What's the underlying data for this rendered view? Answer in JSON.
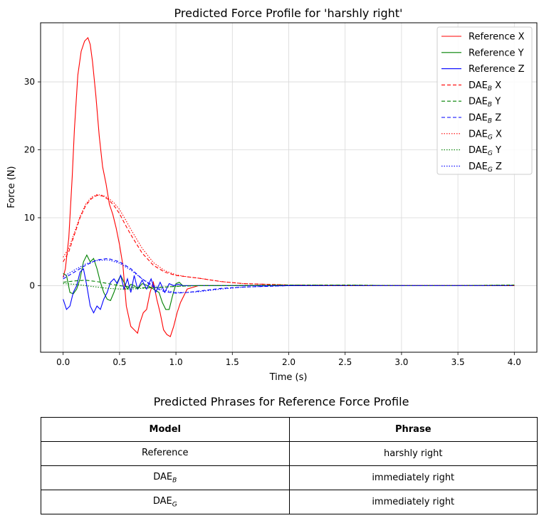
{
  "chart_data": {
    "type": "line",
    "title": "Predicted Force Profile for 'harshly right'",
    "xlabel": "Time (s)",
    "ylabel": "Force (N)",
    "xlim": [
      -0.2,
      4.2
    ],
    "ylim": [
      -9.8,
      38.7
    ],
    "xticks": [
      "0.0",
      "0.5",
      "1.0",
      "1.5",
      "2.0",
      "2.5",
      "3.0",
      "3.5",
      "4.0"
    ],
    "yticks": [
      "0",
      "10",
      "20",
      "30"
    ],
    "grid": true,
    "legend_position": "top-right",
    "series": [
      {
        "name": "Reference X",
        "subscript": "",
        "color": "#ff0000",
        "dash": "solid",
        "x": [
          0,
          0.02,
          0.05,
          0.08,
          0.1,
          0.13,
          0.16,
          0.19,
          0.22,
          0.24,
          0.26,
          0.29,
          0.32,
          0.35,
          0.38,
          0.41,
          0.44,
          0.47,
          0.5,
          0.53,
          0.56,
          0.6,
          0.63,
          0.66,
          0.68,
          0.71,
          0.74,
          0.77,
          0.8,
          0.83,
          0.86,
          0.89,
          0.92,
          0.95,
          0.98,
          1.01,
          1.04,
          1.1,
          1.2,
          1.5,
          2,
          2.5,
          3,
          3.5,
          4
        ],
        "y": [
          1.2,
          2.5,
          7,
          16,
          23,
          31,
          34.5,
          36,
          36.5,
          35.5,
          33,
          28,
          22,
          17.5,
          15,
          12,
          10.5,
          8.5,
          6,
          3,
          -3,
          -6,
          -6.5,
          -7,
          -5.5,
          -4,
          -3.5,
          -1,
          0.5,
          -2,
          -4,
          -6.5,
          -7.2,
          -7.5,
          -6,
          -4,
          -2.5,
          -0.5,
          0,
          0,
          0,
          0,
          0,
          0,
          0
        ]
      },
      {
        "name": "Reference Y",
        "subscript": "",
        "color": "#008000",
        "dash": "solid",
        "x": [
          0,
          0.03,
          0.06,
          0.09,
          0.12,
          0.15,
          0.18,
          0.21,
          0.24,
          0.27,
          0.3,
          0.33,
          0.36,
          0.39,
          0.42,
          0.45,
          0.48,
          0.51,
          0.54,
          0.57,
          0.6,
          0.63,
          0.66,
          0.7,
          0.75,
          0.8,
          0.85,
          0.88,
          0.91,
          0.94,
          0.97,
          1,
          1.03,
          1.06,
          1.2,
          1.5,
          2,
          2.5,
          3,
          3.5,
          4
        ],
        "y": [
          1.8,
          1.5,
          -1,
          -1.2,
          -0.5,
          1,
          3.5,
          4.5,
          3.5,
          4,
          2.5,
          0.5,
          -1,
          -2,
          -2.2,
          -1,
          0.5,
          1.5,
          0.5,
          -0.5,
          0.2,
          0,
          -0.5,
          0.3,
          0,
          -0.5,
          -1,
          -2.5,
          -3.5,
          -3.5,
          -1.5,
          0.3,
          0.5,
          0,
          0,
          0,
          0,
          0,
          0,
          0,
          0
        ]
      },
      {
        "name": "Reference Z",
        "subscript": "",
        "color": "#0000ff",
        "dash": "solid",
        "x": [
          0,
          0.03,
          0.06,
          0.09,
          0.12,
          0.15,
          0.18,
          0.21,
          0.24,
          0.27,
          0.3,
          0.33,
          0.36,
          0.39,
          0.42,
          0.45,
          0.48,
          0.51,
          0.54,
          0.57,
          0.6,
          0.63,
          0.66,
          0.7,
          0.74,
          0.78,
          0.82,
          0.86,
          0.9,
          0.94,
          0.98,
          1.02,
          1.06,
          1.2,
          1.5,
          2,
          2.5,
          3,
          3.5,
          4
        ],
        "y": [
          -2,
          -3.5,
          -3,
          -1,
          0,
          2,
          2.5,
          0,
          -3,
          -4,
          -3,
          -3.5,
          -2,
          -1,
          0.5,
          1,
          0.3,
          1.5,
          -0.5,
          1,
          -1,
          1.5,
          -0.5,
          0.8,
          -0.5,
          1,
          -1,
          0.5,
          -1,
          0.3,
          0,
          0.2,
          0,
          0,
          0,
          0,
          0,
          0,
          0,
          0
        ]
      },
      {
        "name": "DAE",
        "subscript": "B",
        "suffix": " X",
        "color": "#ff0000",
        "dash": "5,3",
        "x": [
          0,
          0.05,
          0.1,
          0.15,
          0.2,
          0.25,
          0.3,
          0.35,
          0.4,
          0.45,
          0.5,
          0.55,
          0.6,
          0.7,
          0.8,
          0.9,
          1,
          1.1,
          1.2,
          1.4,
          1.6,
          1.8,
          2,
          2.5,
          3,
          3.5,
          4
        ],
        "y": [
          3.5,
          5,
          7.5,
          10,
          11.8,
          12.8,
          13.3,
          13.2,
          12.7,
          11.8,
          10.6,
          9,
          7.5,
          4.8,
          3,
          2,
          1.5,
          1.3,
          1.1,
          0.6,
          0.3,
          0.2,
          0.1,
          0,
          0,
          0,
          0
        ]
      },
      {
        "name": "DAE",
        "subscript": "B",
        "suffix": " Y",
        "color": "#008000",
        "dash": "5,3",
        "x": [
          0,
          0.1,
          0.2,
          0.3,
          0.4,
          0.5,
          0.6,
          0.7,
          0.8,
          0.9,
          1,
          1.2,
          1.5,
          2,
          2.5,
          3,
          3.5,
          4
        ],
        "y": [
          0.5,
          0.7,
          0.8,
          0.6,
          0.3,
          0,
          -0.2,
          -0.3,
          -0.3,
          -0.2,
          -0.1,
          0,
          0,
          0.1,
          0.1,
          0,
          0,
          0.1
        ]
      },
      {
        "name": "DAE",
        "subscript": "B",
        "suffix": " Z",
        "color": "#0000ff",
        "dash": "5,3",
        "x": [
          0,
          0.1,
          0.2,
          0.3,
          0.4,
          0.5,
          0.6,
          0.7,
          0.8,
          0.9,
          1,
          1.1,
          1.2,
          1.4,
          1.6,
          1.8,
          2,
          2.5,
          3,
          3.5,
          4
        ],
        "y": [
          1,
          2,
          3,
          3.8,
          4,
          3.5,
          2.5,
          1,
          -0.2,
          -0.9,
          -1.1,
          -1,
          -0.8,
          -0.4,
          -0.2,
          -0.1,
          0,
          0,
          0,
          0,
          0
        ]
      },
      {
        "name": "DAE",
        "subscript": "G",
        "suffix": " X",
        "color": "#ff0000",
        "dash": "1.5,2",
        "x": [
          0,
          0.05,
          0.1,
          0.15,
          0.2,
          0.25,
          0.3,
          0.35,
          0.4,
          0.45,
          0.5,
          0.55,
          0.6,
          0.7,
          0.8,
          0.9,
          1,
          1.1,
          1.2,
          1.4,
          1.6,
          1.8,
          2,
          2.5,
          3,
          3.5,
          4
        ],
        "y": [
          4.2,
          5.5,
          7.8,
          10.2,
          12,
          13,
          13.4,
          13.3,
          12.9,
          12.2,
          11.2,
          9.8,
          8.3,
          5.5,
          3.4,
          2.2,
          1.6,
          1.3,
          1.1,
          0.6,
          0.3,
          0.2,
          0.1,
          0,
          0,
          0,
          0
        ]
      },
      {
        "name": "DAE",
        "subscript": "G",
        "suffix": " Y",
        "color": "#008000",
        "dash": "1.5,2",
        "x": [
          0,
          0.1,
          0.2,
          0.3,
          0.4,
          0.5,
          0.6,
          0.7,
          0.8,
          0.9,
          1,
          1.2,
          1.5,
          2,
          2.5,
          3,
          3.5,
          4
        ],
        "y": [
          0.3,
          0.2,
          0,
          -0.2,
          -0.4,
          -0.5,
          -0.5,
          -0.4,
          -0.3,
          -0.2,
          -0.1,
          0,
          0,
          0.1,
          0.1,
          0,
          0,
          0.1
        ]
      },
      {
        "name": "DAE",
        "subscript": "G",
        "suffix": " Z",
        "color": "#0000ff",
        "dash": "1.5,2",
        "x": [
          0,
          0.1,
          0.2,
          0.3,
          0.4,
          0.5,
          0.6,
          0.7,
          0.8,
          0.9,
          1,
          1.1,
          1.2,
          1.4,
          1.6,
          1.8,
          2,
          2.5,
          3,
          3.5,
          4
        ],
        "y": [
          1.3,
          2.3,
          3.2,
          3.7,
          3.8,
          3.3,
          2.3,
          1,
          0,
          -0.7,
          -1,
          -1,
          -0.9,
          -0.5,
          -0.2,
          -0.1,
          0,
          0,
          0,
          0,
          0
        ]
      }
    ]
  },
  "table": {
    "title": "Predicted Phrases for Reference Force Profile",
    "headers": {
      "model": "Model",
      "phrase": "Phrase"
    },
    "rows": [
      {
        "model": "Reference",
        "model_sub": "",
        "phrase": "harshly right"
      },
      {
        "model": "DAE",
        "model_sub": "B",
        "phrase": "immediately right"
      },
      {
        "model": "DAE",
        "model_sub": "G",
        "phrase": "immediately  right"
      }
    ]
  }
}
